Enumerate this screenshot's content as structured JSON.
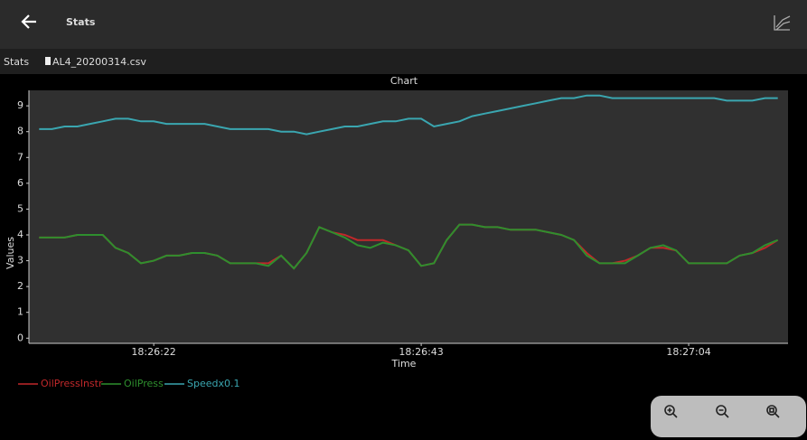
{
  "header": {
    "title": "Stats"
  },
  "breadcrumb": {
    "label": "Stats",
    "file": "AL4_20200314.csv"
  },
  "chart_data": {
    "type": "line",
    "title": "Chart",
    "x_label": "Time",
    "y_label": "Values",
    "x": [
      13,
      14,
      15,
      16,
      17,
      18,
      19,
      20,
      21,
      22,
      23,
      24,
      25,
      26,
      27,
      28,
      29,
      30,
      31,
      32,
      33,
      34,
      35,
      36,
      37,
      38,
      39,
      40,
      41,
      42,
      43,
      44,
      45,
      46,
      47,
      48,
      49,
      50,
      51,
      52,
      53,
      54,
      55,
      56,
      57,
      58,
      59,
      60,
      61,
      62,
      63,
      64,
      65,
      66,
      67,
      68,
      69,
      70,
      71
    ],
    "xlim": [
      12.2,
      71.8
    ],
    "xticks": [
      {
        "value": 22,
        "label": "18:26:22"
      },
      {
        "value": 43,
        "label": "18:26:43"
      },
      {
        "value": 64,
        "label": "18:27:04"
      }
    ],
    "ylim": [
      -0.2,
      9.6
    ],
    "yticks": [
      0,
      1,
      2,
      3,
      4,
      5,
      6,
      7,
      8,
      9
    ],
    "grid": false,
    "series": [
      {
        "name": "OilPressInstr",
        "color": "#c0282a",
        "values": [
          3.9,
          3.9,
          3.9,
          4.0,
          4.0,
          4.0,
          3.5,
          3.3,
          2.9,
          3.0,
          3.2,
          3.2,
          3.3,
          3.3,
          3.2,
          2.9,
          2.9,
          2.9,
          2.9,
          3.2,
          2.7,
          3.3,
          4.3,
          4.1,
          4.0,
          3.8,
          3.8,
          3.8,
          3.6,
          3.4,
          2.8,
          2.9,
          3.8,
          4.4,
          4.4,
          4.3,
          4.3,
          4.2,
          4.2,
          4.2,
          4.1,
          4.0,
          3.8,
          3.3,
          2.9,
          2.9,
          3.0,
          3.2,
          3.5,
          3.5,
          3.4,
          2.9,
          2.9,
          2.9,
          2.9,
          3.2,
          3.3,
          3.5,
          3.8
        ]
      },
      {
        "name": "OilPress",
        "color": "#2e8f2e",
        "values": [
          3.9,
          3.9,
          3.9,
          4.0,
          4.0,
          4.0,
          3.5,
          3.3,
          2.9,
          3.0,
          3.2,
          3.2,
          3.3,
          3.3,
          3.2,
          2.9,
          2.9,
          2.9,
          2.8,
          3.2,
          2.7,
          3.3,
          4.3,
          4.1,
          3.9,
          3.6,
          3.5,
          3.7,
          3.6,
          3.4,
          2.8,
          2.9,
          3.8,
          4.4,
          4.4,
          4.3,
          4.3,
          4.2,
          4.2,
          4.2,
          4.1,
          4.0,
          3.8,
          3.2,
          2.9,
          2.9,
          2.9,
          3.2,
          3.5,
          3.6,
          3.4,
          2.9,
          2.9,
          2.9,
          2.9,
          3.2,
          3.3,
          3.6,
          3.8
        ]
      },
      {
        "name": "Speedx0.1",
        "color": "#3aa6b0",
        "values": [
          8.1,
          8.1,
          8.2,
          8.2,
          8.3,
          8.4,
          8.5,
          8.5,
          8.4,
          8.4,
          8.3,
          8.3,
          8.3,
          8.3,
          8.2,
          8.1,
          8.1,
          8.1,
          8.1,
          8.0,
          8.0,
          7.9,
          8.0,
          8.1,
          8.2,
          8.2,
          8.3,
          8.4,
          8.4,
          8.5,
          8.5,
          8.2,
          8.3,
          8.4,
          8.6,
          8.7,
          8.8,
          8.9,
          9.0,
          9.1,
          9.2,
          9.3,
          9.3,
          9.4,
          9.4,
          9.3,
          9.3,
          9.3,
          9.3,
          9.3,
          9.3,
          9.3,
          9.3,
          9.3,
          9.2,
          9.2,
          9.2,
          9.3,
          9.3
        ]
      }
    ]
  }
}
